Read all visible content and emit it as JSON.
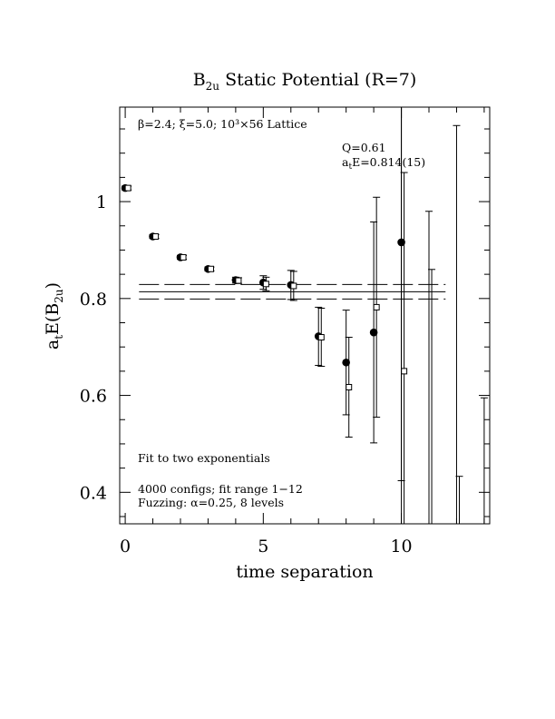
{
  "chart_data": {
    "type": "scatter",
    "title_main": "B",
    "title_sub": "2u",
    "title_rest": " Static Potential (R=7)",
    "xlabel": "time separation",
    "ylabel_main": "a",
    "ylabel_sub1": "t",
    "ylabel_mid": "E(B",
    "ylabel_sub2": "2u",
    "ylabel_end": ")",
    "xlim": [
      -0.2,
      13.2
    ],
    "ylim": [
      0.335,
      1.195
    ],
    "xticks": [
      0,
      5,
      10
    ],
    "xtick_labels": [
      "0",
      "5",
      "10"
    ],
    "yticks": [
      0.4,
      0.6,
      0.8,
      1.0
    ],
    "ytick_labels": [
      "0.4",
      "0.6",
      "0.8",
      "1"
    ],
    "annotations": {
      "lattice": "β=2.4; ξ=5.0; 10³×56 Lattice",
      "q": "Q=0.61",
      "energy_pre": "a",
      "energy_sub": "t",
      "energy_post": "E=0.814(15)",
      "fit": "Fit to two exponentials",
      "configs": "4000 configs; fit range 1−12",
      "fuzzing": "Fuzzing: α=0.25, 8 levels"
    },
    "fit": {
      "value": 0.814,
      "error": 0.015,
      "t_start": 0.5,
      "t_end": 11.6
    },
    "series": [
      {
        "marker": "filled-circle",
        "points": [
          {
            "x": 0,
            "y": 1.028,
            "err": 0.004
          },
          {
            "x": 1,
            "y": 0.928,
            "err": 0.004
          },
          {
            "x": 2,
            "y": 0.885,
            "err": 0.004
          },
          {
            "x": 3,
            "y": 0.861,
            "err": 0.004
          },
          {
            "x": 4,
            "y": 0.838,
            "err": 0.006
          },
          {
            "x": 5,
            "y": 0.833,
            "err": 0.014
          },
          {
            "x": 6,
            "y": 0.828,
            "err": 0.03
          },
          {
            "x": 7,
            "y": 0.722,
            "err": 0.06
          },
          {
            "x": 8,
            "y": 0.668,
            "err": 0.108
          },
          {
            "x": 9,
            "y": 0.73,
            "err": 0.228
          },
          {
            "x": 10,
            "y": 0.916,
            "err": 0.492
          }
        ]
      },
      {
        "marker": "open-square",
        "points": [
          {
            "x": 0.1,
            "y": 1.028,
            "err": 0.004
          },
          {
            "x": 1.1,
            "y": 0.928,
            "err": 0.004
          },
          {
            "x": 2.1,
            "y": 0.885,
            "err": 0.004
          },
          {
            "x": 3.1,
            "y": 0.861,
            "err": 0.004
          },
          {
            "x": 4.1,
            "y": 0.837,
            "err": 0.006
          },
          {
            "x": 5.1,
            "y": 0.83,
            "err": 0.014
          },
          {
            "x": 6.1,
            "y": 0.826,
            "err": 0.03
          },
          {
            "x": 7.1,
            "y": 0.72,
            "err": 0.06
          },
          {
            "x": 8.1,
            "y": 0.617,
            "err": 0.103
          },
          {
            "x": 9.1,
            "y": 0.782,
            "err": 0.227
          },
          {
            "x": 10.1,
            "y": 0.65,
            "err": 0.41
          }
        ]
      }
    ],
    "bare_error_bars": [
      {
        "x": 10.0,
        "y_low": 0.335,
        "y_high": 1.195
      },
      {
        "x": 11.0,
        "y_low": 0.335,
        "y_high": 0.98
      },
      {
        "x": 11.1,
        "y_low": 0.335,
        "y_high": 0.86
      },
      {
        "x": 12.0,
        "y_low": 0.335,
        "y_high": 1.157
      },
      {
        "x": 12.1,
        "y_low": 0.335,
        "y_high": 0.433
      },
      {
        "x": 13.0,
        "y_low": 0.335,
        "y_high": 0.595
      }
    ]
  }
}
